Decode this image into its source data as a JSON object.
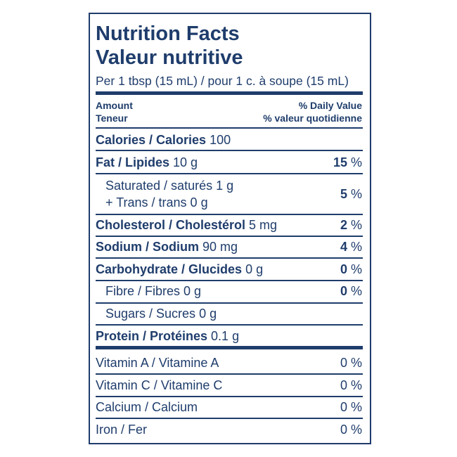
{
  "header": {
    "title_en": "Nutrition Facts",
    "title_fr": "Valeur nutritive",
    "serving": "Per 1 tbsp (15 mL) / pour 1 c. à soupe (15 mL)"
  },
  "columns": {
    "amount_en": "Amount",
    "amount_fr": "Teneur",
    "dv_en": "% Daily Value",
    "dv_fr": "% valeur quotidienne"
  },
  "nutrients": [
    {
      "name": "Calories / Calories",
      "amount": "100"
    },
    {
      "name": "Fat / Lipides",
      "amount": "10 g",
      "dv": "15",
      "unit": "%"
    },
    {
      "lines": [
        "Saturated / saturés 1 g",
        "+ Trans / trans 0 g"
      ],
      "dv": "5",
      "unit": "%"
    },
    {
      "name": "Cholesterol / Cholestérol",
      "amount": "5 mg",
      "dv": "2",
      "unit": "%"
    },
    {
      "name": "Sodium / Sodium",
      "amount": "90 mg",
      "dv": "4",
      "unit": "%"
    },
    {
      "name": "Carbohydrate / Glucides",
      "amount": "0 g",
      "dv": "0",
      "unit": "%"
    },
    {
      "name": "Fibre / Fibres",
      "amount": "0 g",
      "dv": "0",
      "unit": "%"
    },
    {
      "name": "Sugars / Sucres",
      "amount": "0 g"
    },
    {
      "name": "Protein / Protéines",
      "amount": "0.1 g"
    }
  ],
  "vitamins": [
    {
      "name": "Vitamin A / Vitamine A",
      "dv": "0",
      "unit": "%"
    },
    {
      "name": "Vitamin C / Vitamine C",
      "dv": "0",
      "unit": "%"
    },
    {
      "name": "Calcium / Calcium",
      "dv": "0",
      "unit": "%"
    },
    {
      "name": "Iron / Fer",
      "dv": "0",
      "unit": "%"
    }
  ]
}
